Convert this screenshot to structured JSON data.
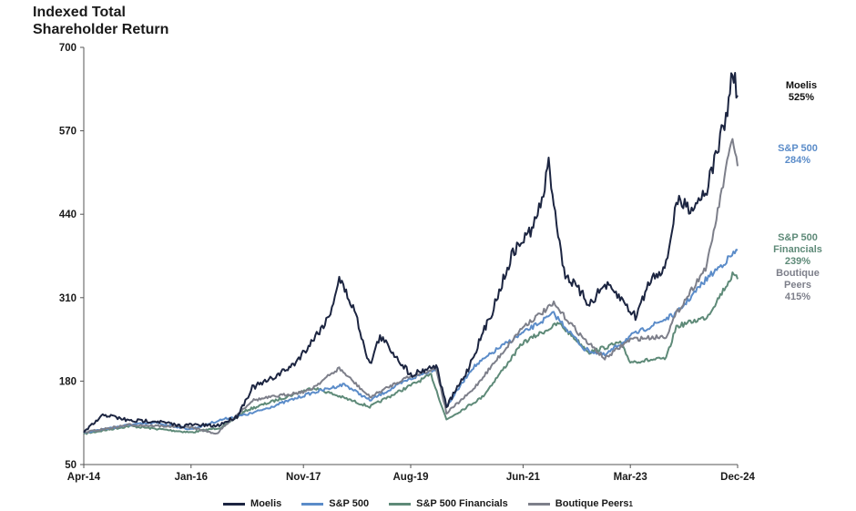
{
  "title_line1": "Indexed Total",
  "title_line2": "Shareholder Return",
  "chart_data": {
    "type": "line",
    "x_tick_labels": [
      "Apr-14",
      "Jan-16",
      "Nov-17",
      "Aug-19",
      "Jun-21",
      "Mar-23",
      "Dec-24"
    ],
    "y_ticks": [
      50,
      180,
      310,
      440,
      570,
      700
    ],
    "ylim": [
      50,
      700
    ],
    "xlim": [
      "Apr-14",
      "Dec-24"
    ],
    "grid": false,
    "legend_position": "bottom",
    "series": [
      {
        "name": "Moelis",
        "color": "#1c2541",
        "end_label": [
          "Moelis",
          "525%"
        ],
        "points": [
          [
            "Apr-14",
            100
          ],
          [
            "Aug-14",
            128
          ],
          [
            "Jan-15",
            118
          ],
          [
            "Jun-15",
            118
          ],
          [
            "Nov-15",
            110
          ],
          [
            "Jan-16",
            112
          ],
          [
            "Jun-16",
            110
          ],
          [
            "Oct-16",
            125
          ],
          [
            "Jan-17",
            170
          ],
          [
            "Apr-17",
            180
          ],
          [
            "Sep-17",
            205
          ],
          [
            "Dec-17",
            235
          ],
          [
            "Apr-18",
            280
          ],
          [
            "Jun-18",
            340
          ],
          [
            "Sep-18",
            290
          ],
          [
            "Dec-18",
            205
          ],
          [
            "Feb-19",
            250
          ],
          [
            "Apr-19",
            230
          ],
          [
            "Aug-19",
            190
          ],
          [
            "Jan-20",
            205
          ],
          [
            "Mar-20",
            140
          ],
          [
            "Jul-20",
            195
          ],
          [
            "Dec-20",
            290
          ],
          [
            "Apr-21",
            380
          ],
          [
            "Aug-21",
            420
          ],
          [
            "Oct-21",
            470
          ],
          [
            "Nov-21",
            520
          ],
          [
            "Dec-21",
            460
          ],
          [
            "Feb-22",
            350
          ],
          [
            "Jul-22",
            300
          ],
          [
            "Oct-22",
            330
          ],
          [
            "Jan-23",
            310
          ],
          [
            "Apr-23",
            280
          ],
          [
            "Jul-23",
            340
          ],
          [
            "Oct-23",
            360
          ],
          [
            "Dec-23",
            460
          ],
          [
            "Mar-24",
            450
          ],
          [
            "Jun-24",
            480
          ],
          [
            "Aug-24",
            540
          ],
          [
            "Oct-24",
            600
          ],
          [
            "Nov-24",
            665
          ],
          [
            "Dec-24",
            625
          ]
        ]
      },
      {
        "name": "S&P 500",
        "color": "#5b8cc9",
        "end_label": [
          "S&P 500",
          "284%"
        ],
        "points": [
          [
            "Apr-14",
            100
          ],
          [
            "Jan-15",
            112
          ],
          [
            "Jun-15",
            115
          ],
          [
            "Jan-16",
            105
          ],
          [
            "Jul-16",
            120
          ],
          [
            "Jan-17",
            130
          ],
          [
            "Dec-17",
            160
          ],
          [
            "Jul-18",
            175
          ],
          [
            "Dec-18",
            150
          ],
          [
            "Jul-19",
            180
          ],
          [
            "Jan-20",
            200
          ],
          [
            "Mar-20",
            140
          ],
          [
            "Aug-20",
            200
          ],
          [
            "Jan-21",
            230
          ],
          [
            "Jun-21",
            255
          ],
          [
            "Dec-21",
            285
          ],
          [
            "Jun-22",
            230
          ],
          [
            "Oct-22",
            220
          ],
          [
            "Mar-23",
            250
          ],
          [
            "Dec-23",
            285
          ],
          [
            "Jun-24",
            340
          ],
          [
            "Dec-24",
            384
          ]
        ]
      },
      {
        "name": "S&P 500 Financials",
        "color": "#5e8a78",
        "end_label": [
          "S&P 500",
          "Financials",
          "239%"
        ],
        "points": [
          [
            "Apr-14",
            98
          ],
          [
            "Jan-15",
            110
          ],
          [
            "Jan-16",
            100
          ],
          [
            "Jul-16",
            108
          ],
          [
            "Dec-16",
            135
          ],
          [
            "Jan-18",
            170
          ],
          [
            "Dec-18",
            140
          ],
          [
            "Dec-19",
            190
          ],
          [
            "Mar-20",
            120
          ],
          [
            "Oct-20",
            155
          ],
          [
            "Jun-21",
            240
          ],
          [
            "Jan-22",
            270
          ],
          [
            "Jul-22",
            225
          ],
          [
            "Jan-23",
            240
          ],
          [
            "Mar-23",
            210
          ],
          [
            "Oct-23",
            215
          ],
          [
            "Dec-23",
            265
          ],
          [
            "Jun-24",
            280
          ],
          [
            "Nov-24",
            345
          ],
          [
            "Dec-24",
            339
          ]
        ]
      },
      {
        "name": "Boutique Peers",
        "superscript": "1",
        "color": "#7d7f8a",
        "end_label": [
          "Boutique",
          "Peers",
          "415%"
        ],
        "points": [
          [
            "Apr-14",
            100
          ],
          [
            "Jan-15",
            112
          ],
          [
            "Jan-16",
            108
          ],
          [
            "Jun-16",
            98
          ],
          [
            "Jan-17",
            150
          ],
          [
            "Dec-17",
            165
          ],
          [
            "Jun-18",
            200
          ],
          [
            "Dec-18",
            155
          ],
          [
            "Jul-19",
            185
          ],
          [
            "Jan-20",
            200
          ],
          [
            "Mar-20",
            130
          ],
          [
            "Aug-20",
            165
          ],
          [
            "Jun-21",
            265
          ],
          [
            "Dec-21",
            300
          ],
          [
            "Jun-22",
            245
          ],
          [
            "Oct-22",
            215
          ],
          [
            "Mar-23",
            245
          ],
          [
            "Oct-23",
            250
          ],
          [
            "Dec-23",
            285
          ],
          [
            "Jun-24",
            360
          ],
          [
            "Nov-24",
            560
          ],
          [
            "Dec-24",
            515
          ]
        ]
      }
    ]
  }
}
